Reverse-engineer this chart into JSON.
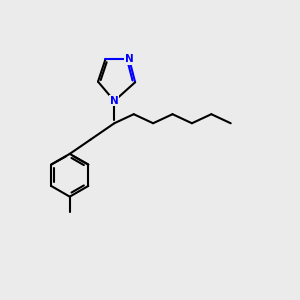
{
  "background_color": "#ebebeb",
  "bond_color": "#000000",
  "nitrogen_color": "#0000ff",
  "line_width": 1.5,
  "figsize": [
    3.0,
    3.0
  ],
  "dpi": 100
}
